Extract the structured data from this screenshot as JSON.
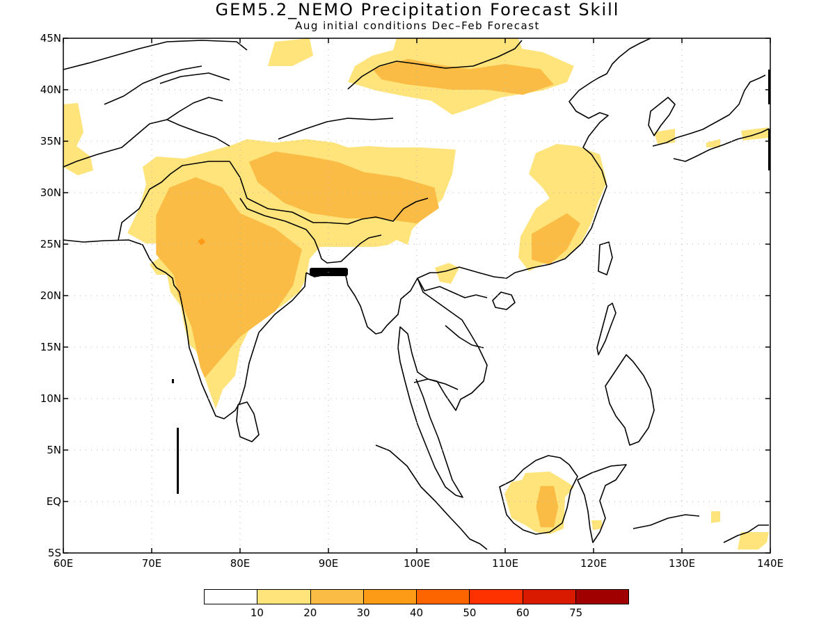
{
  "title": "GEM5.2_NEMO Precipitation Forecast Skill",
  "subtitle": "Aug initial conditions  Dec–Feb Forecast",
  "map": {
    "lon_range": [
      60,
      140
    ],
    "lat_range": [
      -5,
      45
    ],
    "x_ticks": [
      {
        "value": 60,
        "label": "60E"
      },
      {
        "value": 70,
        "label": "70E"
      },
      {
        "value": 80,
        "label": "80E"
      },
      {
        "value": 90,
        "label": "90E"
      },
      {
        "value": 100,
        "label": "100E"
      },
      {
        "value": 110,
        "label": "110E"
      },
      {
        "value": 120,
        "label": "120E"
      },
      {
        "value": 130,
        "label": "130E"
      },
      {
        "value": 140,
        "label": "140E"
      }
    ],
    "y_ticks": [
      {
        "value": 45,
        "label": "45N"
      },
      {
        "value": 40,
        "label": "40N"
      },
      {
        "value": 35,
        "label": "35N"
      },
      {
        "value": 30,
        "label": "30N"
      },
      {
        "value": 25,
        "label": "25N"
      },
      {
        "value": 20,
        "label": "20N"
      },
      {
        "value": 15,
        "label": "15N"
      },
      {
        "value": 10,
        "label": "10N"
      },
      {
        "value": 5,
        "label": "5N"
      },
      {
        "value": 0,
        "label": "EQ"
      },
      {
        "value": -5,
        "label": "5S"
      }
    ],
    "grid": true,
    "skill_regions": [
      {
        "name": "india-20-30",
        "level": 2,
        "color": "#fbbc45",
        "lonlat": [
          [
            70.5,
            27.8
          ],
          [
            72,
            30.5
          ],
          [
            75,
            31.5
          ],
          [
            78,
            30.5
          ],
          [
            80,
            28
          ],
          [
            84,
            26.5
          ],
          [
            87,
            24.5
          ],
          [
            86,
            21
          ],
          [
            84,
            18.5
          ],
          [
            80,
            16
          ],
          [
            78,
            14
          ],
          [
            76,
            12
          ],
          [
            75.5,
            13
          ],
          [
            74.5,
            17
          ],
          [
            73,
            20
          ],
          [
            72.5,
            22
          ],
          [
            70.5,
            24
          ]
        ]
      },
      {
        "name": "tibet-20-30",
        "level": 2,
        "color": "#fbbc45",
        "lonlat": [
          [
            81,
            33
          ],
          [
            84,
            34
          ],
          [
            88,
            33.5
          ],
          [
            91,
            33
          ],
          [
            94,
            32
          ],
          [
            98,
            31.5
          ],
          [
            102,
            30.5
          ],
          [
            102.5,
            28.5
          ],
          [
            100,
            27
          ],
          [
            96,
            27.5
          ],
          [
            92,
            27.5
          ],
          [
            88,
            28
          ],
          [
            85,
            29
          ],
          [
            82,
            31
          ]
        ]
      },
      {
        "name": "mongolia-20-30",
        "level": 2,
        "color": "#fbbc45",
        "lonlat": [
          [
            95,
            42
          ],
          [
            99,
            43
          ],
          [
            102,
            42.5
          ],
          [
            106,
            42
          ],
          [
            110,
            42.5
          ],
          [
            114,
            42
          ],
          [
            115.5,
            40.5
          ],
          [
            112,
            39.5
          ],
          [
            108,
            40
          ],
          [
            104,
            40
          ],
          [
            99,
            40.5
          ],
          [
            96,
            41
          ]
        ]
      },
      {
        "name": "south-china-20-30",
        "level": 2,
        "color": "#fbbc45",
        "lonlat": [
          [
            113,
            26
          ],
          [
            115,
            27
          ],
          [
            117,
            28
          ],
          [
            118.5,
            27
          ],
          [
            117,
            24.5
          ],
          [
            115,
            23
          ],
          [
            113,
            23.5
          ]
        ]
      },
      {
        "name": "borneo-20-30",
        "level": 2,
        "color": "#fbbc45",
        "lonlat": [
          [
            114,
            1.5
          ],
          [
            115.5,
            1.5
          ],
          [
            116,
            -0.5
          ],
          [
            115.5,
            -2.5
          ],
          [
            114,
            -2.5
          ],
          [
            113.5,
            -0.5
          ]
        ]
      },
      {
        "name": "india-30-40",
        "level": 3,
        "color": "#fd9b17",
        "lonlat": [
          [
            75.2,
            25.3
          ],
          [
            75.7,
            25.6
          ],
          [
            76.1,
            25.2
          ],
          [
            75.6,
            24.9
          ]
        ]
      }
    ]
  },
  "legend": {
    "colors": [
      "#ffffff",
      "#fee47a",
      "#fbbc45",
      "#fd9b17",
      "#fd6500",
      "#fd3200",
      "#d91a00",
      "#a00000"
    ],
    "labels": [
      "10",
      "20",
      "30",
      "40",
      "50",
      "60",
      "75"
    ]
  }
}
